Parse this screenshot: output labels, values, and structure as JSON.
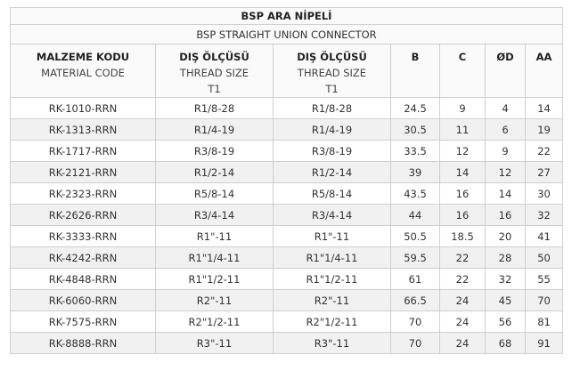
{
  "title": "BSP ARA NİPELİ",
  "subtitle": "BSP STRAIGHT UNION CONNECTOR",
  "headers": {
    "code_tr": "MALZEME KODU",
    "code_en": "MATERIAL CODE",
    "thread1_tr": "DIŞ ÖLÇÜSÜ",
    "thread1_en": "THREAD SIZE",
    "thread1_sub": "T1",
    "thread2_tr": "DIŞ ÖLÇÜSÜ",
    "thread2_en": "THREAD SIZE",
    "thread2_sub": "T1",
    "b": "B",
    "c": "C",
    "od": "ØD",
    "aa": "AA"
  },
  "rows": [
    {
      "code": "RK-1010-RRN",
      "t1": "R1/8-28",
      "t2": "R1/8-28",
      "b": "24.5",
      "c": "9",
      "od": "4",
      "aa": "14"
    },
    {
      "code": "RK-1313-RRN",
      "t1": "R1/4-19",
      "t2": "R1/4-19",
      "b": "30.5",
      "c": "11",
      "od": "6",
      "aa": "19"
    },
    {
      "code": "RK-1717-RRN",
      "t1": "R3/8-19",
      "t2": "R3/8-19",
      "b": "33.5",
      "c": "12",
      "od": "9",
      "aa": "22"
    },
    {
      "code": "RK-2121-RRN",
      "t1": "R1/2-14",
      "t2": "R1/2-14",
      "b": "39",
      "c": "14",
      "od": "12",
      "aa": "27"
    },
    {
      "code": "RK-2323-RRN",
      "t1": "R5/8-14",
      "t2": "R5/8-14",
      "b": "43.5",
      "c": "16",
      "od": "14",
      "aa": "30"
    },
    {
      "code": "RK-2626-RRN",
      "t1": "R3/4-14",
      "t2": "R3/4-14",
      "b": "44",
      "c": "16",
      "od": "16",
      "aa": "32"
    },
    {
      "code": "RK-3333-RRN",
      "t1": "R1\"-11",
      "t2": "R1\"-11",
      "b": "50.5",
      "c": "18.5",
      "od": "20",
      "aa": "41"
    },
    {
      "code": "RK-4242-RRN",
      "t1": "R1\"1/4-11",
      "t2": "R1\"1/4-11",
      "b": "59.5",
      "c": "22",
      "od": "28",
      "aa": "50"
    },
    {
      "code": "RK-4848-RRN",
      "t1": "R1\"1/2-11",
      "t2": "R1\"1/2-11",
      "b": "61",
      "c": "22",
      "od": "32",
      "aa": "55"
    },
    {
      "code": "RK-6060-RRN",
      "t1": "R2\"-11",
      "t2": "R2\"-11",
      "b": "66.5",
      "c": "24",
      "od": "45",
      "aa": "70"
    },
    {
      "code": "RK-7575-RRN",
      "t1": "R2\"1/2-11",
      "t2": "R2\"1/2-11",
      "b": "70",
      "c": "24",
      "od": "56",
      "aa": "81"
    },
    {
      "code": "RK-8888-RRN",
      "t1": "R3\"-11",
      "t2": "R3\"-11",
      "b": "70",
      "c": "24",
      "od": "68",
      "aa": "91"
    }
  ]
}
